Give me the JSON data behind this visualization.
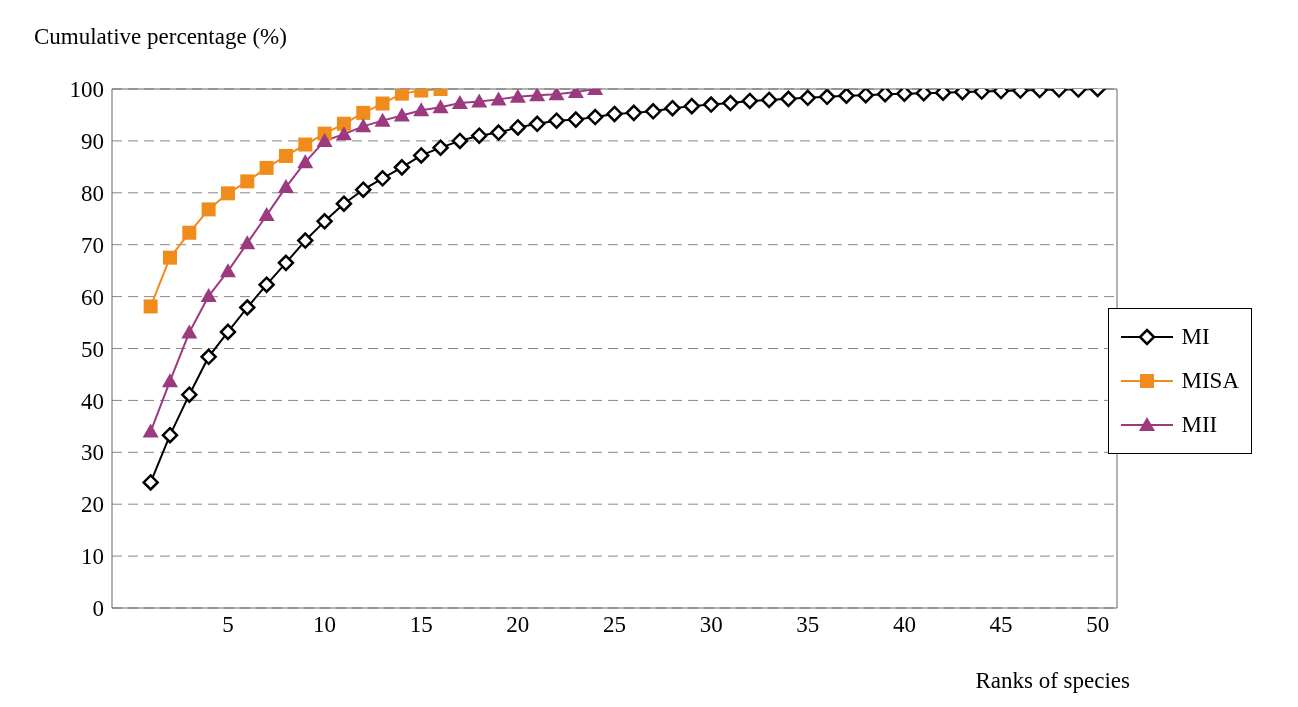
{
  "chart_data": {
    "type": "line",
    "xlabel": "Ranks of species",
    "ylabel": "Cumulative percentage (%)",
    "xlim": [
      -1,
      51
    ],
    "xticks": [
      5,
      10,
      15,
      20,
      25,
      30,
      35,
      40,
      45,
      50
    ],
    "ylim": [
      0,
      100
    ],
    "yticks": [
      0,
      10,
      20,
      30,
      40,
      50,
      60,
      70,
      80,
      90,
      100
    ],
    "grid": "y",
    "legend": "right",
    "line_style": "solid",
    "series": [
      {
        "name": "MI",
        "color": "#000000",
        "marker": "diamond",
        "x": [
          1,
          2,
          3,
          4,
          5,
          6,
          7,
          8,
          9,
          10,
          11,
          12,
          13,
          14,
          15,
          16,
          17,
          18,
          19,
          20,
          21,
          22,
          23,
          24,
          25,
          26,
          27,
          28,
          29,
          30,
          31,
          32,
          33,
          34,
          35,
          36,
          37,
          38,
          39,
          40,
          41,
          42,
          43,
          44,
          45,
          46,
          47,
          48,
          49,
          50
        ],
        "values": [
          24.2,
          33.3,
          41.1,
          48.4,
          53.2,
          57.9,
          62.3,
          66.5,
          70.8,
          74.5,
          77.9,
          80.6,
          82.8,
          84.9,
          87.2,
          88.7,
          90.0,
          91.0,
          91.6,
          92.6,
          93.3,
          93.9,
          94.1,
          94.6,
          95.2,
          95.4,
          95.7,
          96.3,
          96.7,
          97.0,
          97.3,
          97.7,
          97.9,
          98.1,
          98.3,
          98.5,
          98.7,
          98.8,
          99.0,
          99.1,
          99.2,
          99.3,
          99.4,
          99.5,
          99.6,
          99.7,
          99.8,
          99.9,
          99.9,
          100
        ]
      },
      {
        "name": "MISA",
        "color": "#f08c1c",
        "marker": "square",
        "x": [
          1,
          2,
          3,
          4,
          5,
          6,
          7,
          8,
          9,
          10,
          11,
          12,
          13,
          14,
          15,
          16
        ],
        "values": [
          58.1,
          67.5,
          72.3,
          76.8,
          79.9,
          82.2,
          84.8,
          87.1,
          89.3,
          91.4,
          93.3,
          95.4,
          97.2,
          99.1,
          99.7,
          100
        ]
      },
      {
        "name": "MII",
        "color": "#9c3a80",
        "marker": "triangle",
        "x": [
          1,
          2,
          3,
          4,
          5,
          6,
          7,
          8,
          9,
          10,
          11,
          12,
          13,
          14,
          15,
          16,
          17,
          18,
          19,
          20,
          21,
          22,
          23,
          24
        ],
        "values": [
          34.0,
          43.7,
          53.1,
          60.1,
          64.9,
          70.3,
          75.7,
          81.1,
          85.9,
          90.0,
          91.3,
          92.8,
          93.9,
          94.9,
          95.9,
          96.5,
          97.3,
          97.6,
          98.0,
          98.5,
          98.8,
          99.0,
          99.4,
          100
        ]
      }
    ]
  }
}
